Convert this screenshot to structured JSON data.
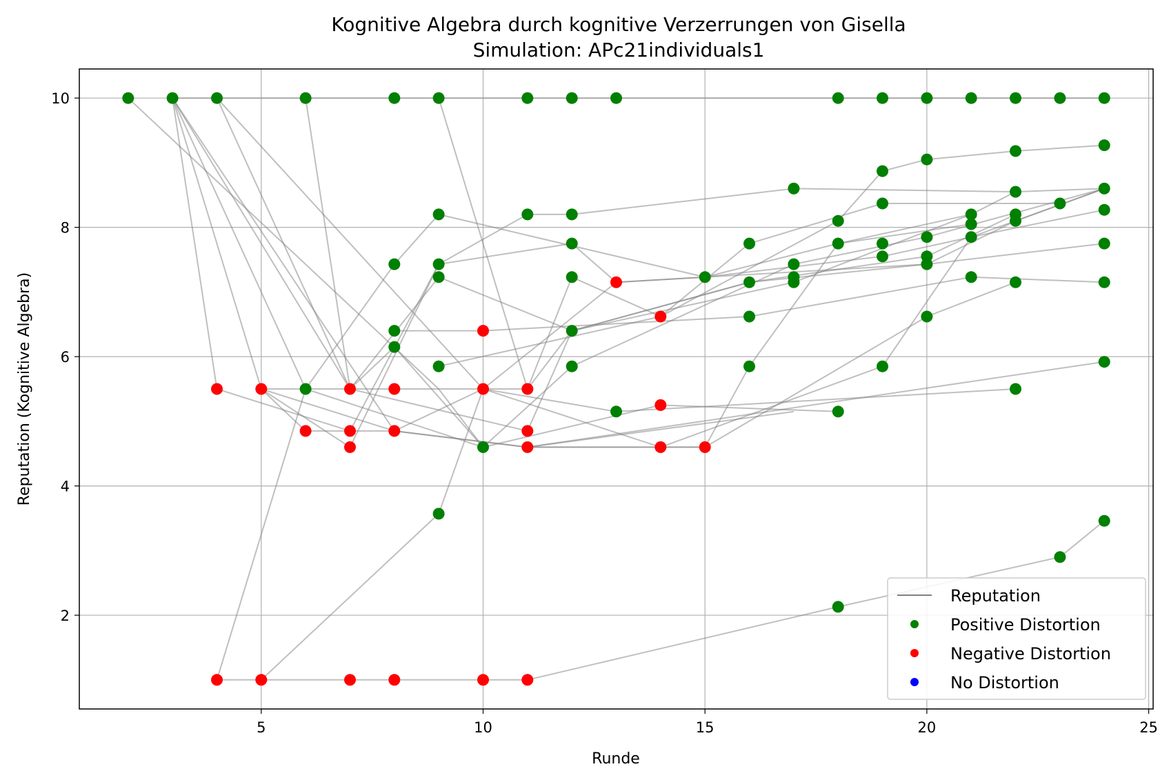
{
  "chart_data": {
    "type": "scatter",
    "title": "Kognitive Algebra durch kognitive Verzerrungen von Gisella",
    "subtitle": "Simulation: APc21individuals1",
    "xlabel": "Runde",
    "ylabel": "Reputation (Kognitive Algebra)",
    "xlim": [
      0.9,
      25.1
    ],
    "ylim": [
      0.55,
      10.45
    ],
    "xticks": [
      5,
      10,
      15,
      20,
      25
    ],
    "yticks": [
      2,
      4,
      6,
      8,
      10
    ],
    "grid": true,
    "legend_position": "lower right",
    "legend": [
      {
        "label": "Reputation",
        "kind": "line",
        "color": "#808080"
      },
      {
        "label": "Positive Distortion",
        "kind": "marker",
        "color": "#008000"
      },
      {
        "label": "Negative Distortion",
        "kind": "marker",
        "color": "#ff0000"
      },
      {
        "label": "No Distortion",
        "kind": "marker",
        "color": "#0000ff"
      }
    ],
    "colors": {
      "positive": "#008000",
      "negative": "#ff0000",
      "none": "#0000ff",
      "line": "#808080"
    },
    "series": [
      {
        "points": [
          [
            2,
            10
          ],
          [
            9,
            5.5
          ],
          [
            10,
            4.6
          ],
          [
            12,
            5.85
          ],
          [
            17,
            7.43
          ],
          [
            20,
            7.85
          ],
          [
            24,
            8.6
          ]
        ]
      },
      {
        "points": [
          [
            3,
            10
          ],
          [
            4,
            5.5
          ],
          [
            7,
            4.85
          ],
          [
            9,
            7.43
          ],
          [
            12,
            7.75
          ],
          [
            13,
            7.15
          ],
          [
            15,
            7.23
          ],
          [
            19,
            7.55
          ],
          [
            21,
            7.85
          ],
          [
            24,
            8.6
          ]
        ]
      },
      {
        "points": [
          [
            3,
            10
          ],
          [
            5,
            5.5
          ],
          [
            8,
            4.85
          ],
          [
            11,
            4.6
          ],
          [
            14,
            4.6
          ],
          [
            15,
            4.6
          ],
          [
            20,
            6.62
          ],
          [
            22,
            7.15
          ]
        ]
      },
      {
        "points": [
          [
            3,
            10
          ],
          [
            6,
            5.5
          ],
          [
            10,
            4.6
          ],
          [
            14,
            5.25
          ],
          [
            18,
            5.15
          ]
        ]
      },
      {
        "points": [
          [
            3,
            10
          ],
          [
            7,
            5.5
          ],
          [
            9,
            7.23
          ],
          [
            12,
            6.4
          ],
          [
            17,
            7.15
          ],
          [
            21,
            8.2
          ],
          [
            22,
            8.55
          ]
        ]
      },
      {
        "points": [
          [
            3,
            10
          ],
          [
            8,
            4.85
          ],
          [
            11,
            4.6
          ],
          [
            17,
            5.15
          ]
        ]
      },
      {
        "points": [
          [
            4,
            10
          ],
          [
            7,
            5.5
          ],
          [
            11,
            4.85
          ],
          [
            12,
            6.4
          ],
          [
            16,
            7.15
          ],
          [
            20,
            7.43
          ],
          [
            22,
            8.1
          ],
          [
            24,
            8.6
          ]
        ]
      },
      {
        "points": [
          [
            4,
            10
          ],
          [
            10,
            5.5
          ],
          [
            14,
            4.6
          ],
          [
            15,
            4.6
          ],
          [
            16,
            5.85
          ],
          [
            18,
            7.75
          ],
          [
            21,
            8.2
          ]
        ]
      },
      {
        "points": [
          [
            6,
            10
          ],
          [
            7,
            5.5
          ],
          [
            8,
            6.15
          ],
          [
            10,
            4.6
          ]
        ]
      },
      {
        "points": [
          [
            9,
            10
          ],
          [
            11,
            5.5
          ],
          [
            12,
            7.23
          ],
          [
            14,
            6.62
          ],
          [
            16,
            7.75
          ],
          [
            19,
            8.37
          ],
          [
            23,
            8.37
          ]
        ]
      },
      {
        "points": [
          [
            3,
            10
          ],
          [
            24,
            10
          ]
        ]
      },
      {
        "points": [
          [
            4,
            1
          ],
          [
            6,
            5.5
          ],
          [
            8,
            7.43
          ],
          [
            9,
            8.2
          ],
          [
            15,
            7.23
          ],
          [
            18,
            7.75
          ],
          [
            21,
            8.05
          ]
        ]
      },
      {
        "points": [
          [
            5,
            1
          ],
          [
            9,
            3.57
          ],
          [
            10,
            5.5
          ],
          [
            11,
            5.5
          ],
          [
            12,
            6.4
          ],
          [
            16,
            7.15
          ],
          [
            20,
            7.55
          ],
          [
            22,
            8.2
          ]
        ]
      },
      {
        "points": [
          [
            4,
            1
          ],
          [
            11,
            1
          ],
          [
            18,
            2.13
          ],
          [
            23,
            2.9
          ],
          [
            24,
            3.46
          ]
        ]
      },
      {
        "points": [
          [
            5,
            5.5
          ],
          [
            7,
            4.6
          ],
          [
            9,
            7.43
          ],
          [
            11,
            8.2
          ],
          [
            12,
            8.2
          ],
          [
            17,
            8.6
          ],
          [
            22,
            8.55
          ],
          [
            24,
            8.6
          ]
        ]
      },
      {
        "points": [
          [
            5,
            5.5
          ],
          [
            6,
            4.85
          ],
          [
            8,
            4.85
          ],
          [
            10,
            5.5
          ],
          [
            13,
            5.15
          ],
          [
            22,
            5.5
          ]
        ]
      },
      {
        "points": [
          [
            5,
            5.5
          ],
          [
            10,
            5.5
          ],
          [
            13,
            7.15
          ],
          [
            20,
            7.43
          ],
          [
            24,
            7.75
          ]
        ]
      },
      {
        "points": [
          [
            8,
            6.4
          ],
          [
            10,
            6.4
          ],
          [
            16,
            6.62
          ],
          [
            21,
            7.23
          ],
          [
            24,
            7.15
          ]
        ]
      },
      {
        "points": [
          [
            9,
            5.85
          ],
          [
            14,
            6.62
          ],
          [
            18,
            8.1
          ],
          [
            19,
            8.87
          ],
          [
            20,
            9.05
          ],
          [
            22,
            9.18
          ],
          [
            24,
            9.27
          ]
        ]
      },
      {
        "points": [
          [
            11,
            4.6
          ],
          [
            14,
            4.6
          ],
          [
            19,
            5.85
          ],
          [
            21,
            7.85
          ],
          [
            24,
            8.27
          ]
        ]
      },
      {
        "points": [
          [
            11,
            4.6
          ],
          [
            24,
            5.92
          ]
        ]
      }
    ],
    "points": [
      {
        "x": 2,
        "y": 10,
        "c": "positive"
      },
      {
        "x": 3,
        "y": 10,
        "c": "positive"
      },
      {
        "x": 4,
        "y": 10,
        "c": "positive"
      },
      {
        "x": 6,
        "y": 10,
        "c": "positive"
      },
      {
        "x": 8,
        "y": 10,
        "c": "positive"
      },
      {
        "x": 9,
        "y": 10,
        "c": "positive"
      },
      {
        "x": 11,
        "y": 10,
        "c": "positive"
      },
      {
        "x": 12,
        "y": 10,
        "c": "positive"
      },
      {
        "x": 13,
        "y": 10,
        "c": "positive"
      },
      {
        "x": 18,
        "y": 10,
        "c": "positive"
      },
      {
        "x": 19,
        "y": 10,
        "c": "positive"
      },
      {
        "x": 20,
        "y": 10,
        "c": "positive"
      },
      {
        "x": 21,
        "y": 10,
        "c": "positive"
      },
      {
        "x": 22,
        "y": 10,
        "c": "positive"
      },
      {
        "x": 23,
        "y": 10,
        "c": "positive"
      },
      {
        "x": 24,
        "y": 10,
        "c": "positive"
      },
      {
        "x": 24,
        "y": 9.27,
        "c": "positive"
      },
      {
        "x": 20,
        "y": 9.05,
        "c": "positive"
      },
      {
        "x": 22,
        "y": 9.18,
        "c": "positive"
      },
      {
        "x": 19,
        "y": 8.87,
        "c": "positive"
      },
      {
        "x": 17,
        "y": 8.6,
        "c": "positive"
      },
      {
        "x": 24,
        "y": 8.6,
        "c": "positive"
      },
      {
        "x": 22,
        "y": 8.55,
        "c": "positive"
      },
      {
        "x": 19,
        "y": 8.37,
        "c": "positive"
      },
      {
        "x": 23,
        "y": 8.37,
        "c": "positive"
      },
      {
        "x": 24,
        "y": 8.27,
        "c": "positive"
      },
      {
        "x": 9,
        "y": 8.2,
        "c": "positive"
      },
      {
        "x": 11,
        "y": 8.2,
        "c": "positive"
      },
      {
        "x": 12,
        "y": 8.2,
        "c": "positive"
      },
      {
        "x": 21,
        "y": 8.2,
        "c": "positive"
      },
      {
        "x": 22,
        "y": 8.2,
        "c": "positive"
      },
      {
        "x": 18,
        "y": 8.1,
        "c": "positive"
      },
      {
        "x": 21,
        "y": 8.05,
        "c": "positive"
      },
      {
        "x": 22,
        "y": 8.1,
        "c": "positive"
      },
      {
        "x": 20,
        "y": 7.85,
        "c": "positive"
      },
      {
        "x": 21,
        "y": 7.85,
        "c": "positive"
      },
      {
        "x": 12,
        "y": 7.75,
        "c": "positive"
      },
      {
        "x": 16,
        "y": 7.75,
        "c": "positive"
      },
      {
        "x": 18,
        "y": 7.75,
        "c": "positive"
      },
      {
        "x": 19,
        "y": 7.75,
        "c": "positive"
      },
      {
        "x": 24,
        "y": 7.75,
        "c": "positive"
      },
      {
        "x": 19,
        "y": 7.55,
        "c": "positive"
      },
      {
        "x": 20,
        "y": 7.55,
        "c": "positive"
      },
      {
        "x": 8,
        "y": 7.43,
        "c": "positive"
      },
      {
        "x": 9,
        "y": 7.43,
        "c": "positive"
      },
      {
        "x": 17,
        "y": 7.43,
        "c": "positive"
      },
      {
        "x": 20,
        "y": 7.43,
        "c": "positive"
      },
      {
        "x": 9,
        "y": 7.23,
        "c": "positive"
      },
      {
        "x": 12,
        "y": 7.23,
        "c": "positive"
      },
      {
        "x": 15,
        "y": 7.23,
        "c": "positive"
      },
      {
        "x": 17,
        "y": 7.23,
        "c": "positive"
      },
      {
        "x": 21,
        "y": 7.23,
        "c": "positive"
      },
      {
        "x": 16,
        "y": 7.15,
        "c": "positive"
      },
      {
        "x": 17,
        "y": 7.15,
        "c": "positive"
      },
      {
        "x": 22,
        "y": 7.15,
        "c": "positive"
      },
      {
        "x": 24,
        "y": 7.15,
        "c": "positive"
      },
      {
        "x": 16,
        "y": 6.62,
        "c": "positive"
      },
      {
        "x": 20,
        "y": 6.62,
        "c": "positive"
      },
      {
        "x": 8,
        "y": 6.4,
        "c": "positive"
      },
      {
        "x": 12,
        "y": 6.4,
        "c": "positive"
      },
      {
        "x": 8,
        "y": 6.15,
        "c": "positive"
      },
      {
        "x": 24,
        "y": 5.92,
        "c": "positive"
      },
      {
        "x": 9,
        "y": 5.85,
        "c": "positive"
      },
      {
        "x": 12,
        "y": 5.85,
        "c": "positive"
      },
      {
        "x": 16,
        "y": 5.85,
        "c": "positive"
      },
      {
        "x": 19,
        "y": 5.85,
        "c": "positive"
      },
      {
        "x": 6,
        "y": 5.5,
        "c": "positive"
      },
      {
        "x": 22,
        "y": 5.5,
        "c": "positive"
      },
      {
        "x": 13,
        "y": 5.15,
        "c": "positive"
      },
      {
        "x": 18,
        "y": 5.15,
        "c": "positive"
      },
      {
        "x": 10,
        "y": 4.6,
        "c": "positive"
      },
      {
        "x": 9,
        "y": 3.57,
        "c": "positive"
      },
      {
        "x": 24,
        "y": 3.46,
        "c": "positive"
      },
      {
        "x": 23,
        "y": 2.9,
        "c": "positive"
      },
      {
        "x": 18,
        "y": 2.13,
        "c": "positive"
      },
      {
        "x": 13,
        "y": 7.15,
        "c": "negative"
      },
      {
        "x": 14,
        "y": 6.62,
        "c": "negative"
      },
      {
        "x": 10,
        "y": 6.4,
        "c": "negative"
      },
      {
        "x": 4,
        "y": 5.5,
        "c": "negative"
      },
      {
        "x": 5,
        "y": 5.5,
        "c": "negative"
      },
      {
        "x": 7,
        "y": 5.5,
        "c": "negative"
      },
      {
        "x": 8,
        "y": 5.5,
        "c": "negative"
      },
      {
        "x": 10,
        "y": 5.5,
        "c": "negative"
      },
      {
        "x": 11,
        "y": 5.5,
        "c": "negative"
      },
      {
        "x": 14,
        "y": 5.25,
        "c": "negative"
      },
      {
        "x": 6,
        "y": 4.85,
        "c": "negative"
      },
      {
        "x": 7,
        "y": 4.85,
        "c": "negative"
      },
      {
        "x": 8,
        "y": 4.85,
        "c": "negative"
      },
      {
        "x": 11,
        "y": 4.85,
        "c": "negative"
      },
      {
        "x": 7,
        "y": 4.6,
        "c": "negative"
      },
      {
        "x": 11,
        "y": 4.6,
        "c": "negative"
      },
      {
        "x": 14,
        "y": 4.6,
        "c": "negative"
      },
      {
        "x": 15,
        "y": 4.6,
        "c": "negative"
      },
      {
        "x": 4,
        "y": 1,
        "c": "negative"
      },
      {
        "x": 5,
        "y": 1,
        "c": "negative"
      },
      {
        "x": 7,
        "y": 1,
        "c": "negative"
      },
      {
        "x": 8,
        "y": 1,
        "c": "negative"
      },
      {
        "x": 10,
        "y": 1,
        "c": "negative"
      },
      {
        "x": 11,
        "y": 1,
        "c": "negative"
      }
    ]
  }
}
